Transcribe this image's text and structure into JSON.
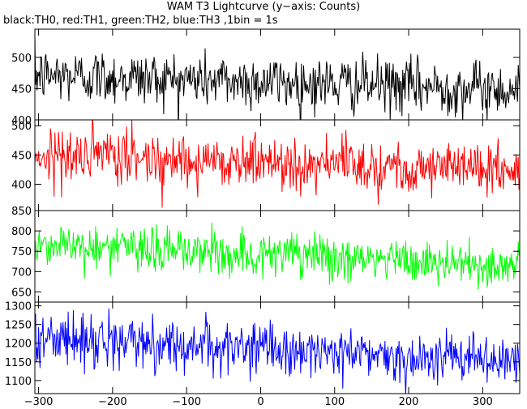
{
  "title": "WAM T3 Lightcurve (y−axis: Counts)",
  "subtitle": "black:TH0, red:TH1, green:TH2, blue:TH3 ,1bin = 1s",
  "chart_data": {
    "type": "line",
    "x_range": [
      -305,
      350
    ],
    "x_ticks": [
      -300,
      -200,
      -100,
      0,
      100,
      200,
      300
    ],
    "x_tick_labels": [
      "−300",
      "−200",
      "−100",
      "0",
      "100",
      "200",
      "300"
    ],
    "panels": [
      {
        "name": "TH0",
        "color": "#000000",
        "y_range": [
          400,
          545
        ],
        "y_ticks": [
          400,
          450,
          500
        ],
        "y_tick_labels": [
          "400",
          "450",
          "500"
        ],
        "trend": {
          "start": 472,
          "end": 448
        },
        "noise_sd": 22
      },
      {
        "name": "TH1",
        "color": "#ff0000",
        "y_range": [
          355,
          510
        ],
        "y_ticks": [
          400,
          450,
          500
        ],
        "y_tick_labels": [
          "400",
          "450",
          "500"
        ],
        "trend": {
          "start": 450,
          "end": 425
        },
        "noise_sd": 23
      },
      {
        "name": "TH2",
        "color": "#00ff00",
        "y_range": [
          625,
          850
        ],
        "y_ticks": [
          650,
          700,
          750,
          800,
          850
        ],
        "y_tick_labels": [
          "650",
          "700",
          "750",
          "800",
          "850"
        ],
        "trend": {
          "start": 768,
          "end": 712
        },
        "noise_sd": 28
      },
      {
        "name": "TH3",
        "color": "#0000ff",
        "y_range": [
          1065,
          1310
        ],
        "y_ticks": [
          1100,
          1150,
          1200,
          1250,
          1300
        ],
        "y_tick_labels": [
          "1100",
          "1150",
          "1200",
          "1250",
          "1300"
        ],
        "trend": {
          "start": 1215,
          "end": 1150
        },
        "noise_sd": 34
      }
    ]
  }
}
